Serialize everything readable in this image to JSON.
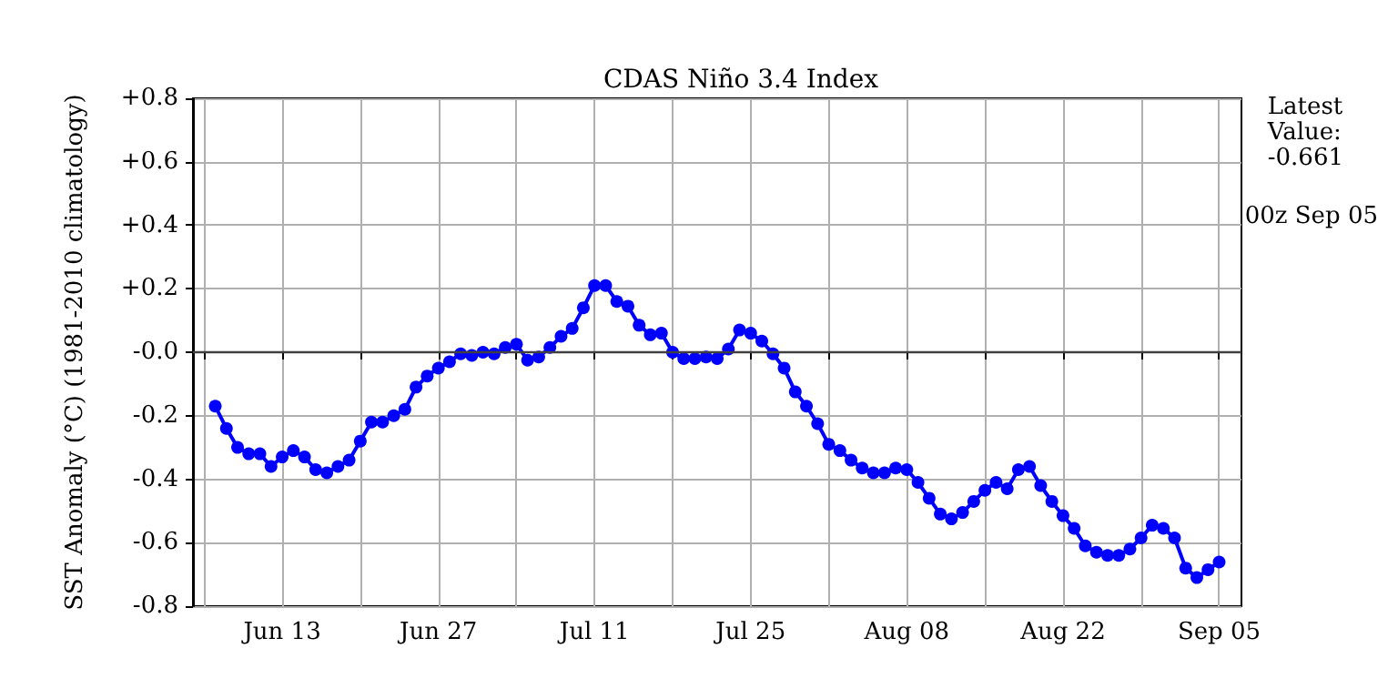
{
  "chart_data": {
    "type": "line",
    "title": "CDAS Niño 3.4 Index",
    "ylabel": "SST Anomaly (°C) (1981-2010 climatology)",
    "annotations": [
      "Latest\nValue:\n-0.661",
      "00z Sep 05"
    ],
    "x": [
      "--06-07",
      "--06-08",
      "--06-09",
      "--06-10",
      "--06-11",
      "--06-12",
      "--06-13",
      "--06-14",
      "--06-15",
      "--06-16",
      "--06-17",
      "--06-18",
      "--06-19",
      "--06-20",
      "--06-21",
      "--06-22",
      "--06-23",
      "--06-24",
      "--06-25",
      "--06-26",
      "--06-27",
      "--06-28",
      "--06-29",
      "--06-30",
      "--07-01",
      "--07-02",
      "--07-03",
      "--07-04",
      "--07-05",
      "--07-06",
      "--07-07",
      "--07-08",
      "--07-09",
      "--07-10",
      "--07-11",
      "--07-12",
      "--07-13",
      "--07-14",
      "--07-15",
      "--07-16",
      "--07-17",
      "--07-18",
      "--07-19",
      "--07-20",
      "--07-21",
      "--07-22",
      "--07-23",
      "--07-24",
      "--07-25",
      "--07-26",
      "--07-27",
      "--07-28",
      "--07-29",
      "--07-30",
      "--07-31",
      "--08-01",
      "--08-02",
      "--08-03",
      "--08-04",
      "--08-05",
      "--08-06",
      "--08-07",
      "--08-08",
      "--08-09",
      "--08-10",
      "--08-11",
      "--08-12",
      "--08-13",
      "--08-14",
      "--08-15",
      "--08-16",
      "--08-17",
      "--08-18",
      "--08-19",
      "--08-20",
      "--08-21",
      "--08-22",
      "--08-23",
      "--08-24",
      "--08-25",
      "--08-26",
      "--08-27",
      "--08-28",
      "--08-29",
      "--08-30",
      "--08-31",
      "--09-01",
      "--09-02",
      "--09-03",
      "--09-04",
      "--09-05"
    ],
    "series": [
      {
        "color": "#0000ff",
        "values": [
          -0.17,
          -0.24,
          -0.3,
          -0.32,
          -0.32,
          -0.36,
          -0.33,
          -0.31,
          -0.33,
          -0.37,
          -0.38,
          -0.36,
          -0.34,
          -0.28,
          -0.22,
          -0.22,
          -0.2,
          -0.18,
          -0.11,
          -0.075,
          -0.05,
          -0.03,
          -0.005,
          -0.01,
          0.0,
          -0.005,
          0.015,
          0.025,
          -0.025,
          -0.015,
          0.015,
          0.05,
          0.075,
          0.14,
          0.21,
          0.21,
          0.16,
          0.145,
          0.085,
          0.055,
          0.06,
          0.0,
          -0.02,
          -0.02,
          -0.015,
          -0.02,
          0.01,
          0.07,
          0.06,
          0.035,
          -0.005,
          -0.05,
          -0.125,
          -0.17,
          -0.225,
          -0.29,
          -0.31,
          -0.34,
          -0.365,
          -0.38,
          -0.38,
          -0.365,
          -0.37,
          -0.41,
          -0.46,
          -0.51,
          -0.525,
          -0.505,
          -0.47,
          -0.435,
          -0.41,
          -0.43,
          -0.37,
          -0.36,
          -0.42,
          -0.47,
          -0.515,
          -0.555,
          -0.61,
          -0.63,
          -0.64,
          -0.64,
          -0.62,
          -0.585,
          -0.545,
          -0.555,
          -0.585,
          -0.68,
          -0.71,
          -0.685,
          -0.661
        ]
      }
    ],
    "xlim": [
      "--06-05",
      "--09-07"
    ],
    "xticks": [
      {
        "value": "--06-06",
        "label": null
      },
      {
        "value": "--06-13",
        "label": "Jun 13"
      },
      {
        "value": "--06-20",
        "label": null
      },
      {
        "value": "--06-27",
        "label": "Jun 27"
      },
      {
        "value": "--07-04",
        "label": null
      },
      {
        "value": "--07-11",
        "label": "Jul 11"
      },
      {
        "value": "--07-18",
        "label": null
      },
      {
        "value": "--07-25",
        "label": "Jul 25"
      },
      {
        "value": "--08-01",
        "label": null
      },
      {
        "value": "--08-08",
        "label": "Aug 08"
      },
      {
        "value": "--08-15",
        "label": null
      },
      {
        "value": "--08-22",
        "label": "Aug 22"
      },
      {
        "value": "--08-29",
        "label": null
      },
      {
        "value": "--09-05",
        "label": "Sep 05"
      }
    ],
    "ylim": [
      -0.8,
      0.8
    ],
    "yticks": [
      {
        "value": -0.8,
        "label": "-0.8"
      },
      {
        "value": -0.6,
        "label": "-0.6"
      },
      {
        "value": -0.4,
        "label": "-0.4"
      },
      {
        "value": -0.2,
        "label": "-0.2"
      },
      {
        "value": 0,
        "label": "-0.0"
      },
      {
        "value": 0.2,
        "label": "+0.2"
      },
      {
        "value": 0.4,
        "label": "+0.4"
      },
      {
        "value": 0.6,
        "label": "+0.6"
      },
      {
        "value": 0.8,
        "label": "+0.8"
      }
    ],
    "ref_lines": [
      {
        "axis": "y",
        "value": 0,
        "color": "#404040"
      }
    ],
    "grid": true,
    "marker": "circle",
    "line_style": "solid"
  }
}
